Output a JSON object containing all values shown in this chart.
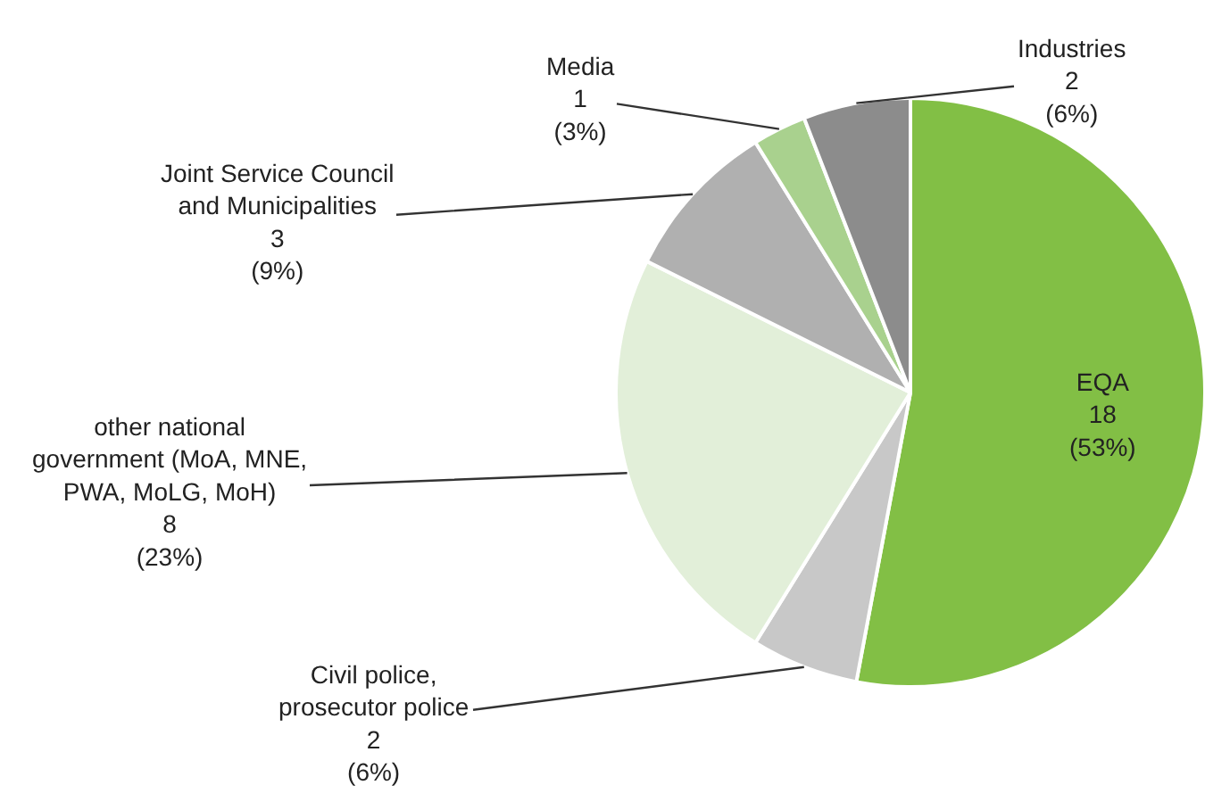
{
  "chart_data": {
    "type": "pie",
    "categories": [
      "EQA",
      "Civil police, prosecutor police",
      "other national government (MoA, MNE, PWA, MoLG, MoH)",
      "Joint Service Council and Municipalities",
      "Media",
      "Industries"
    ],
    "values": [
      18,
      2,
      8,
      3,
      1,
      2
    ],
    "value_labels": [
      "18\n(53%)",
      "2\n(6%)",
      "8\n(23%)",
      "3\n(9%)",
      "1\n(3%)",
      "2\n(6%)"
    ],
    "colors": [
      "#82bf45",
      "#c8c8c8",
      "#e2efd9",
      "#b0b0b0",
      "#a9d18e",
      "#8c8c8c"
    ]
  }
}
